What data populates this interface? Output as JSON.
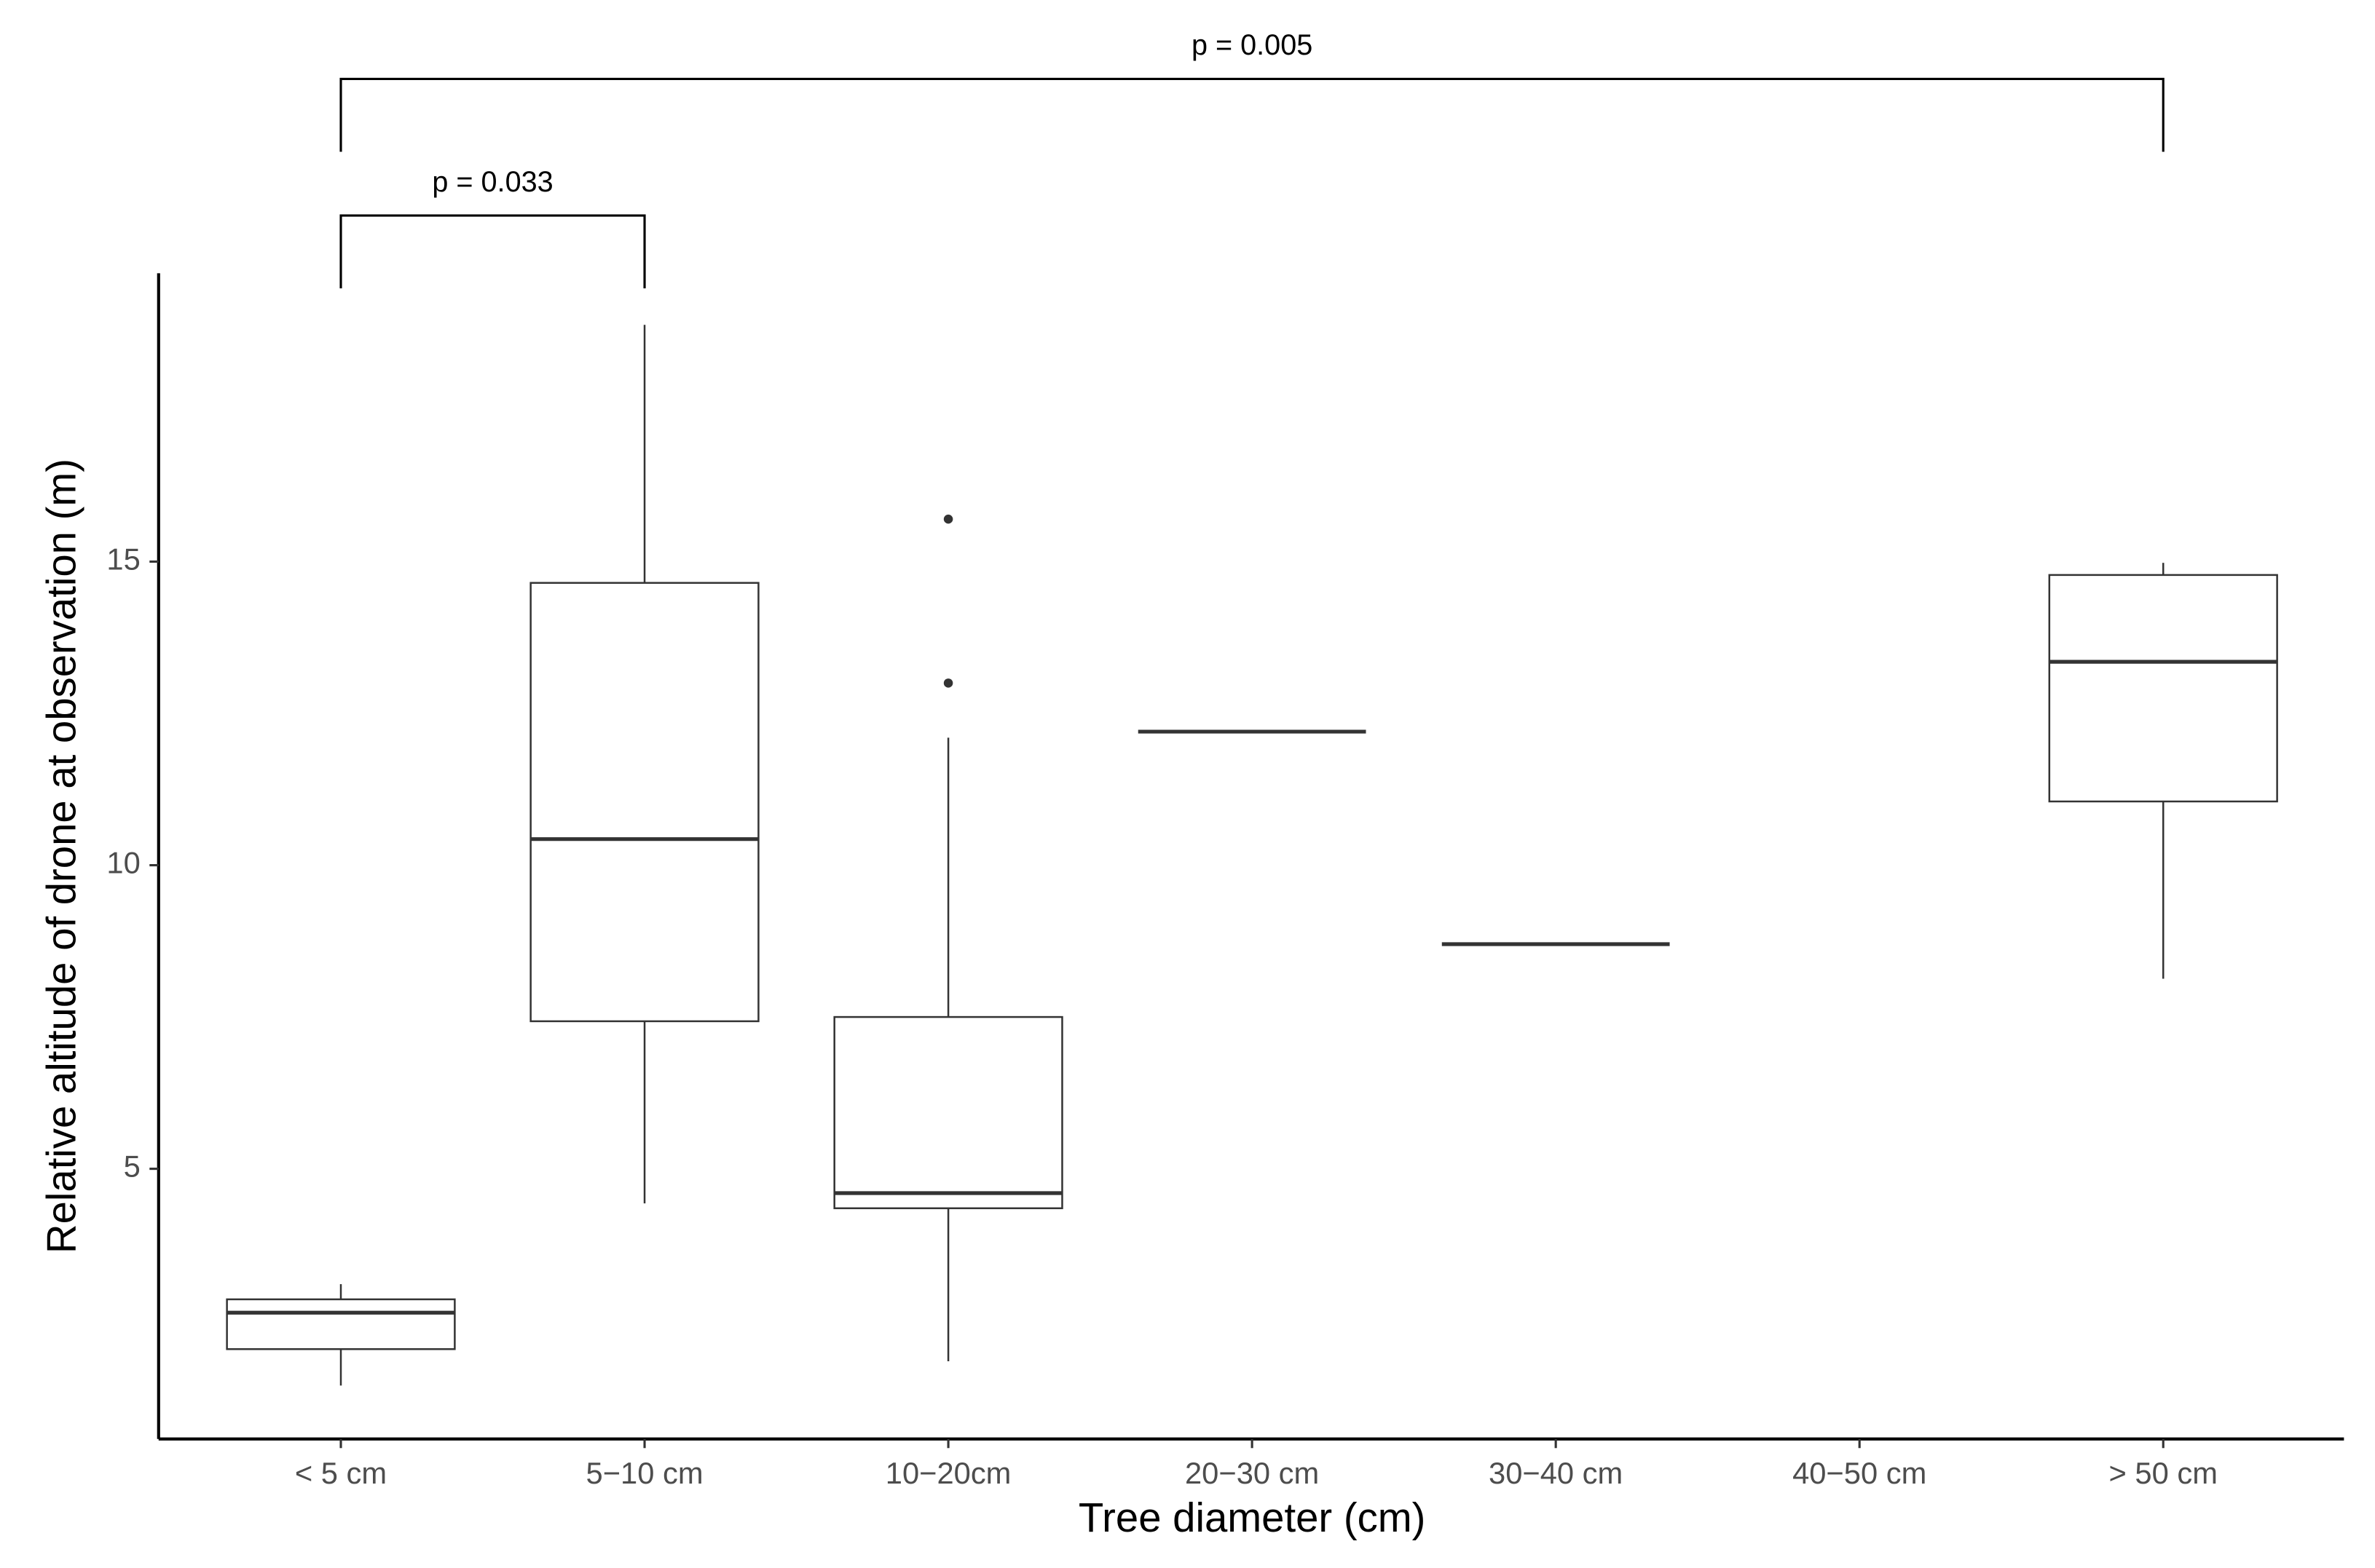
{
  "chart_data": {
    "type": "box",
    "x_label": "Tree diameter (cm)",
    "y_label": "Relative altitude of drone at observation (m)",
    "categories": [
      "< 5 cm",
      "5−10 cm",
      "10−20cm",
      "20−30  cm",
      "30−40 cm",
      "40−50 cm",
      "> 50 cm"
    ],
    "boxes": [
      {
        "min": 1.43,
        "q1": 2.03,
        "median": 2.63,
        "q3": 2.85,
        "max": 3.1,
        "outliers": []
      },
      {
        "min": 4.43,
        "q1": 7.43,
        "median": 10.43,
        "q3": 14.65,
        "max": 18.9,
        "outliers": []
      },
      {
        "min": 1.83,
        "q1": 4.35,
        "median": 4.6,
        "q3": 7.5,
        "max": 12.1,
        "outliers": [
          13.0,
          15.7
        ]
      },
      {
        "min": 12.2,
        "q1": 12.2,
        "median": 12.2,
        "q3": 12.2,
        "max": 12.2,
        "outliers": []
      },
      {
        "min": 8.7,
        "q1": 8.7,
        "median": 8.7,
        "q3": 8.7,
        "max": 8.7,
        "outliers": []
      },
      {
        "min": null,
        "q1": null,
        "median": null,
        "q3": null,
        "max": null,
        "outliers": []
      },
      {
        "min": 8.13,
        "q1": 11.05,
        "median": 13.35,
        "q3": 14.78,
        "max": 14.98,
        "outliers": []
      }
    ],
    "color": "#333333",
    "ylim": [
      0.55,
      19.75
    ],
    "yticks": [
      5,
      10,
      15
    ],
    "grid": false,
    "annotations": [
      "p = 0.033",
      "p = 0.005"
    ]
  }
}
